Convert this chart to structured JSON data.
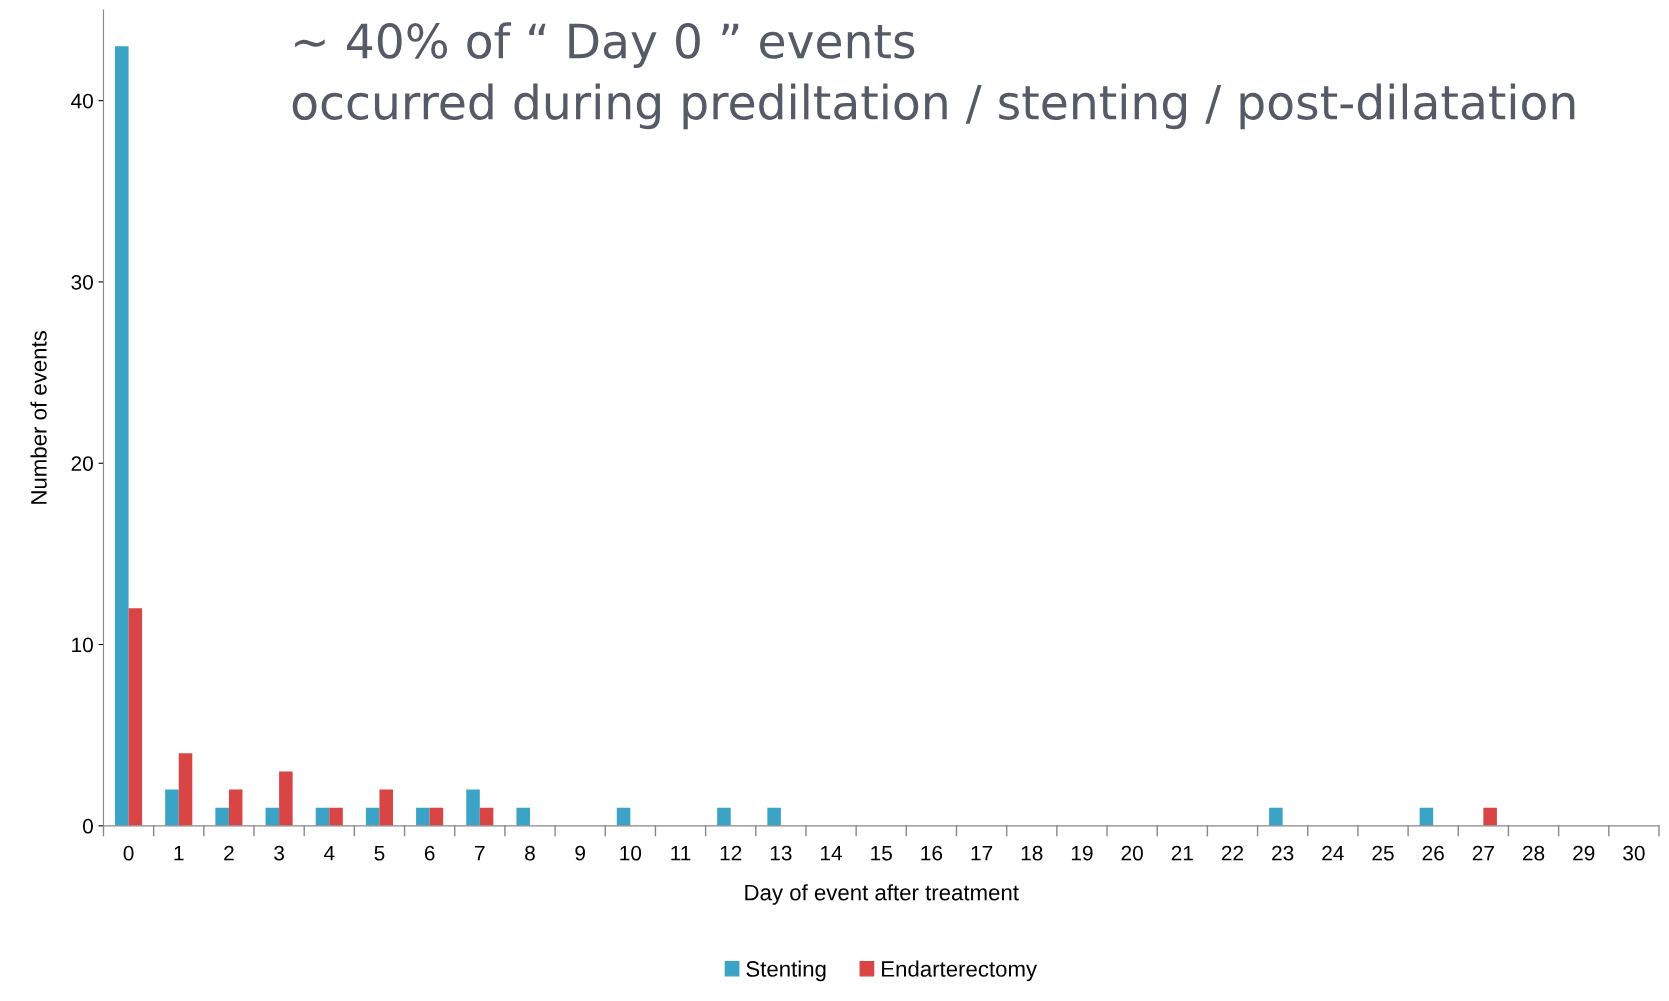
{
  "chart_data": {
    "type": "bar",
    "xlabel": "Day of event after treatment",
    "ylabel": "Number of events",
    "annotations": [
      "~ 40% of “ Day 0 ” events",
      "occurred during prediltation / stenting / post-dilatation"
    ],
    "categories": [
      "0",
      "1",
      "2",
      "3",
      "4",
      "5",
      "6",
      "7",
      "8",
      "9",
      "10",
      "11",
      "12",
      "13",
      "14",
      "15",
      "16",
      "17",
      "18",
      "19",
      "20",
      "21",
      "22",
      "23",
      "24",
      "25",
      "26",
      "27",
      "28",
      "29",
      "30"
    ],
    "series": [
      {
        "name": "Stenting",
        "color": "#3aa3c6",
        "values": [
          43,
          2,
          1,
          1,
          1,
          1,
          1,
          2,
          1,
          0,
          1,
          0,
          1,
          1,
          0,
          0,
          0,
          0,
          0,
          0,
          0,
          0,
          0,
          1,
          0,
          0,
          1,
          0,
          0,
          0,
          0
        ]
      },
      {
        "name": "Endarterectomy",
        "color": "#d94444",
        "values": [
          12,
          4,
          2,
          3,
          1,
          2,
          1,
          1,
          0,
          0,
          0,
          0,
          0,
          0,
          0,
          0,
          0,
          0,
          0,
          0,
          0,
          0,
          0,
          0,
          0,
          0,
          0,
          1,
          0,
          0,
          0
        ]
      }
    ],
    "ylim": [
      0,
      45
    ],
    "yticks": [
      0,
      10,
      20,
      30,
      40
    ],
    "grid": false,
    "legend": "bottom"
  }
}
